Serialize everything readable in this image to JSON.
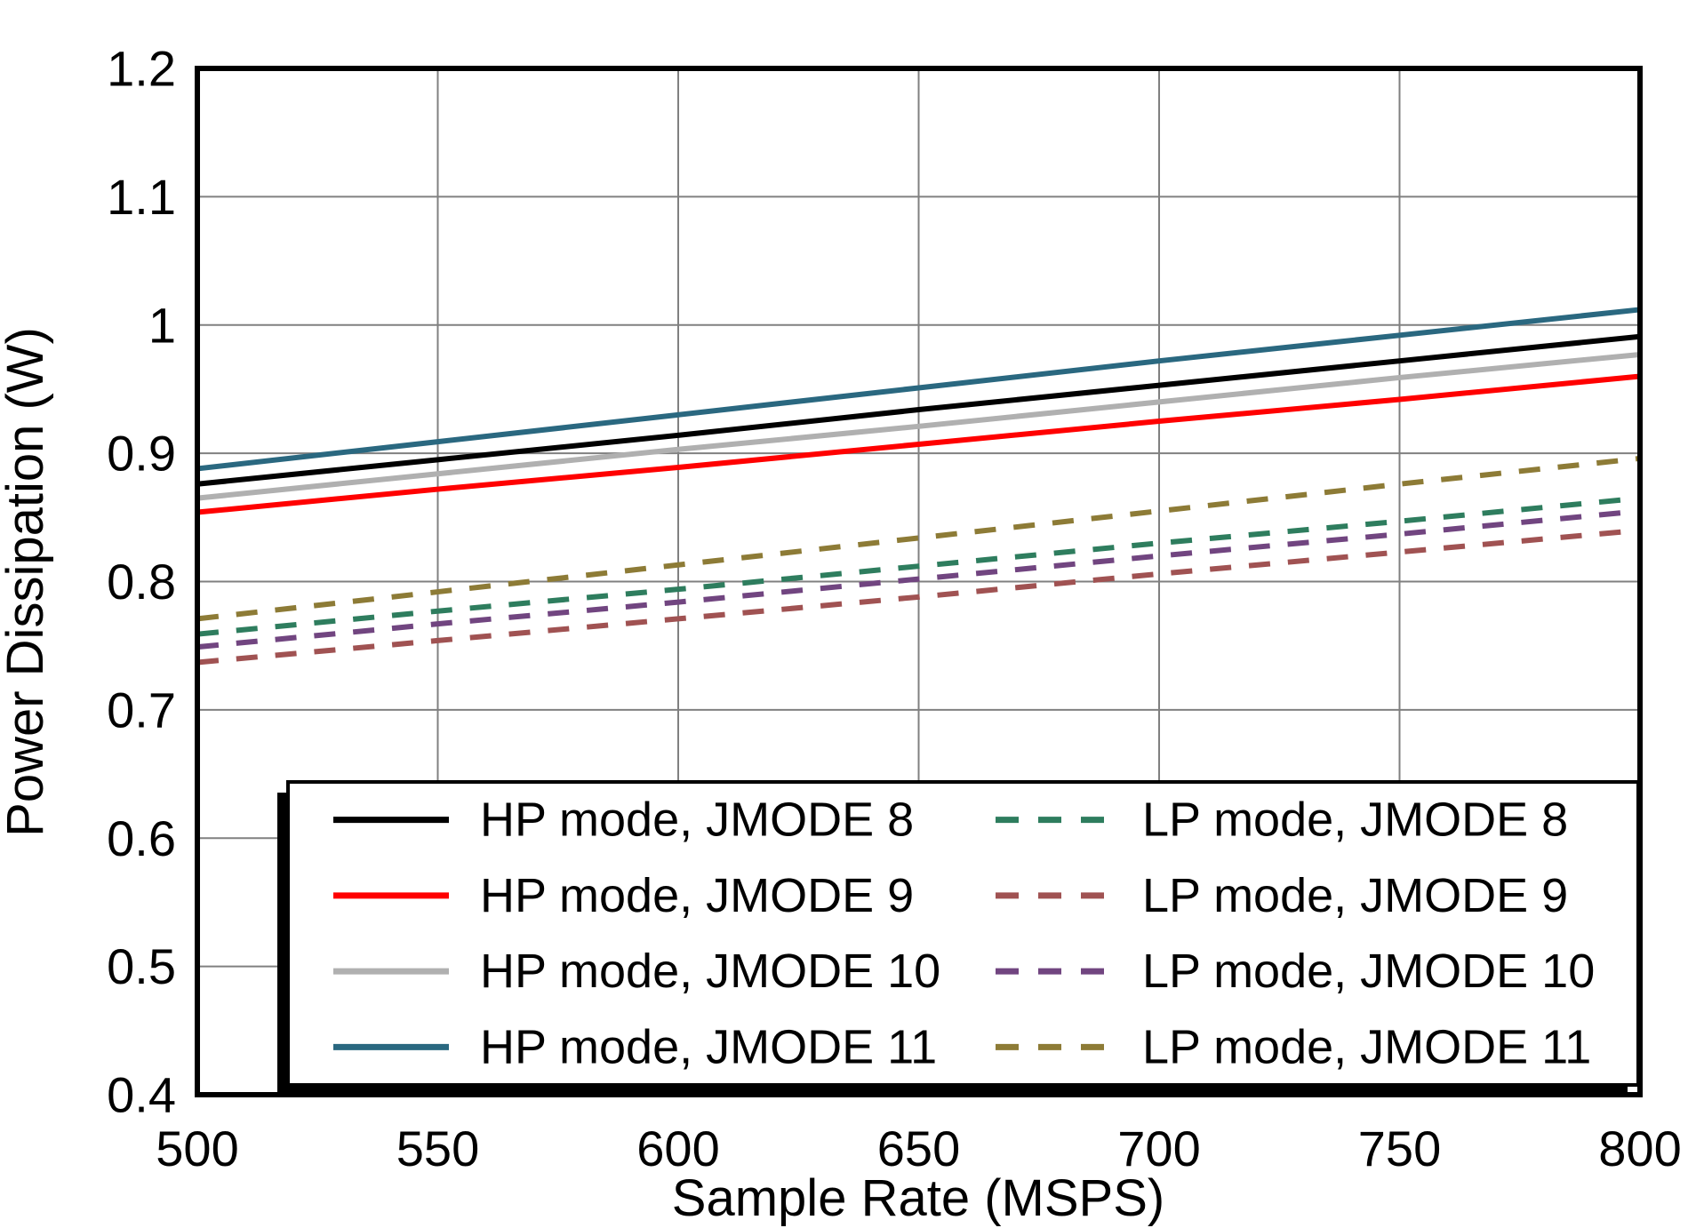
{
  "chart_data": {
    "type": "line",
    "title": "",
    "xlabel": "Sample Rate (MSPS)",
    "ylabel": "Power Dissipation (W)",
    "xlim": [
      500,
      800
    ],
    "ylim": [
      0.4,
      1.2
    ],
    "grid": true,
    "grid_color": "#808080",
    "frame_color": "#000000",
    "xticks": [
      500,
      550,
      600,
      650,
      700,
      750,
      800
    ],
    "xtick_labels": [
      "500",
      "550",
      "600",
      "650",
      "700",
      "750",
      "800"
    ],
    "yticks": [
      0.4,
      0.5,
      0.6,
      0.7,
      0.8,
      0.9,
      1.0,
      1.1,
      1.2
    ],
    "ytick_labels": [
      "0.4",
      "0.5",
      "0.6",
      "0.7",
      "0.8",
      "0.9",
      "1",
      "1.1",
      "1.2"
    ],
    "x": [
      500,
      550,
      600,
      650,
      700,
      750,
      800
    ],
    "series": [
      {
        "id": "hp-jmode-8",
        "label": "HP mode, JMODE 8",
        "color": "#000000",
        "style": "solid",
        "values": [
          0.876,
          0.895,
          0.914,
          0.934,
          0.953,
          0.972,
          0.991
        ]
      },
      {
        "id": "hp-jmode-9",
        "label": "HP mode, JMODE 9",
        "color": "#ff0000",
        "style": "solid",
        "values": [
          0.854,
          0.872,
          0.889,
          0.907,
          0.925,
          0.942,
          0.96
        ]
      },
      {
        "id": "hp-jmode-10",
        "label": "HP mode, JMODE 10",
        "color": "#b0b0b0",
        "style": "solid",
        "values": [
          0.865,
          0.884,
          0.903,
          0.921,
          0.94,
          0.959,
          0.977
        ]
      },
      {
        "id": "hp-jmode-11",
        "label": "HP mode, JMODE 11",
        "color": "#2a6880",
        "style": "solid",
        "values": [
          0.888,
          0.909,
          0.93,
          0.951,
          0.972,
          0.992,
          1.012
        ]
      },
      {
        "id": "lp-jmode-8",
        "label": "LP mode, JMODE 8",
        "color": "#2e7d5e",
        "style": "dashed",
        "values": [
          0.759,
          0.777,
          0.794,
          0.812,
          0.83,
          0.847,
          0.865
        ]
      },
      {
        "id": "lp-jmode-9",
        "label": "LP mode, JMODE 9",
        "color": "#a05252",
        "style": "dashed",
        "values": [
          0.737,
          0.754,
          0.771,
          0.788,
          0.806,
          0.823,
          0.84
        ]
      },
      {
        "id": "lp-jmode-10",
        "label": "LP mode, JMODE 10",
        "color": "#714580",
        "style": "dashed",
        "values": [
          0.749,
          0.767,
          0.784,
          0.802,
          0.82,
          0.837,
          0.855
        ]
      },
      {
        "id": "lp-jmode-11",
        "label": "LP mode, JMODE 11",
        "color": "#8d7b36",
        "style": "dashed",
        "values": [
          0.771,
          0.792,
          0.813,
          0.834,
          0.855,
          0.876,
          0.896
        ]
      }
    ],
    "legend": {
      "position": "inside-bottom",
      "columns": 2,
      "column1_series": [
        "hp-jmode-8",
        "hp-jmode-9",
        "hp-jmode-10",
        "hp-jmode-11"
      ],
      "column2_series": [
        "lp-jmode-8",
        "lp-jmode-9",
        "lp-jmode-10",
        "lp-jmode-11"
      ]
    }
  }
}
